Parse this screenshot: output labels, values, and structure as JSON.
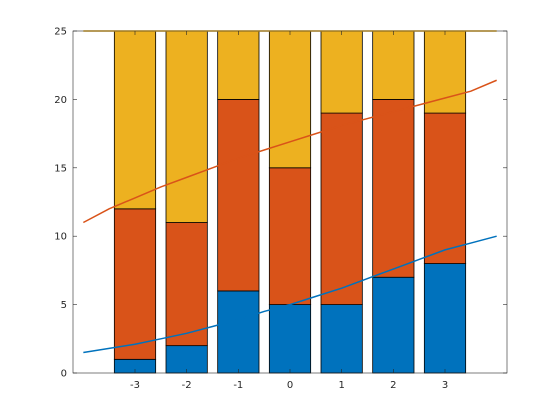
{
  "chart_data": {
    "type": "bar",
    "stacked": true,
    "categories": [
      -3,
      -2,
      -1,
      0,
      1,
      2,
      3
    ],
    "series": [
      {
        "values": [
          1,
          2,
          6,
          5,
          5,
          7,
          8
        ],
        "color": "#0072BD"
      },
      {
        "values": [
          11,
          9,
          14,
          10,
          14,
          13,
          11
        ],
        "color": "#D95319"
      },
      {
        "values": [
          13,
          14,
          5,
          10,
          6,
          5,
          6
        ],
        "color": "#EDB120"
      }
    ],
    "lines": [
      {
        "x": [
          -4.0,
          -3.5,
          -3.0,
          -2.5,
          -2.0,
          -1.5,
          -1.0,
          -0.5,
          0.0,
          0.5,
          1.0,
          1.5,
          2.0,
          2.5,
          3.0,
          3.5,
          4.0
        ],
        "y": [
          1.5,
          1.8,
          2.1,
          2.5,
          2.9,
          3.4,
          3.9,
          4.5,
          5.0,
          5.6,
          6.2,
          6.9,
          7.6,
          8.3,
          9.0,
          9.5,
          10.0
        ],
        "color": "#0072BD"
      },
      {
        "x": [
          -4.0,
          -3.5,
          -3.0,
          -2.5,
          -2.0,
          -1.5,
          -1.0,
          -0.5,
          0.0,
          0.5,
          1.0,
          1.5,
          2.0,
          2.5,
          3.0,
          3.5,
          4.0
        ],
        "y": [
          11.0,
          12.0,
          12.8,
          13.6,
          14.3,
          15.0,
          15.7,
          16.3,
          16.9,
          17.5,
          18.1,
          18.6,
          19.1,
          19.6,
          20.1,
          20.6,
          21.4
        ],
        "color": "#D95319"
      },
      {
        "x": [
          -4.0,
          4.0
        ],
        "y": [
          25.0,
          25.0
        ],
        "color": "#EDB120"
      }
    ],
    "xlim": [
      -4.2,
      4.2
    ],
    "ylim": [
      0,
      25
    ],
    "xticks": [
      "-3",
      "-2",
      "-1",
      "0",
      "1",
      "2",
      "3"
    ],
    "yticks": [
      "0",
      "5",
      "10",
      "15",
      "20",
      "25"
    ],
    "grid": false,
    "title": "",
    "xlabel": "",
    "ylabel": ""
  }
}
